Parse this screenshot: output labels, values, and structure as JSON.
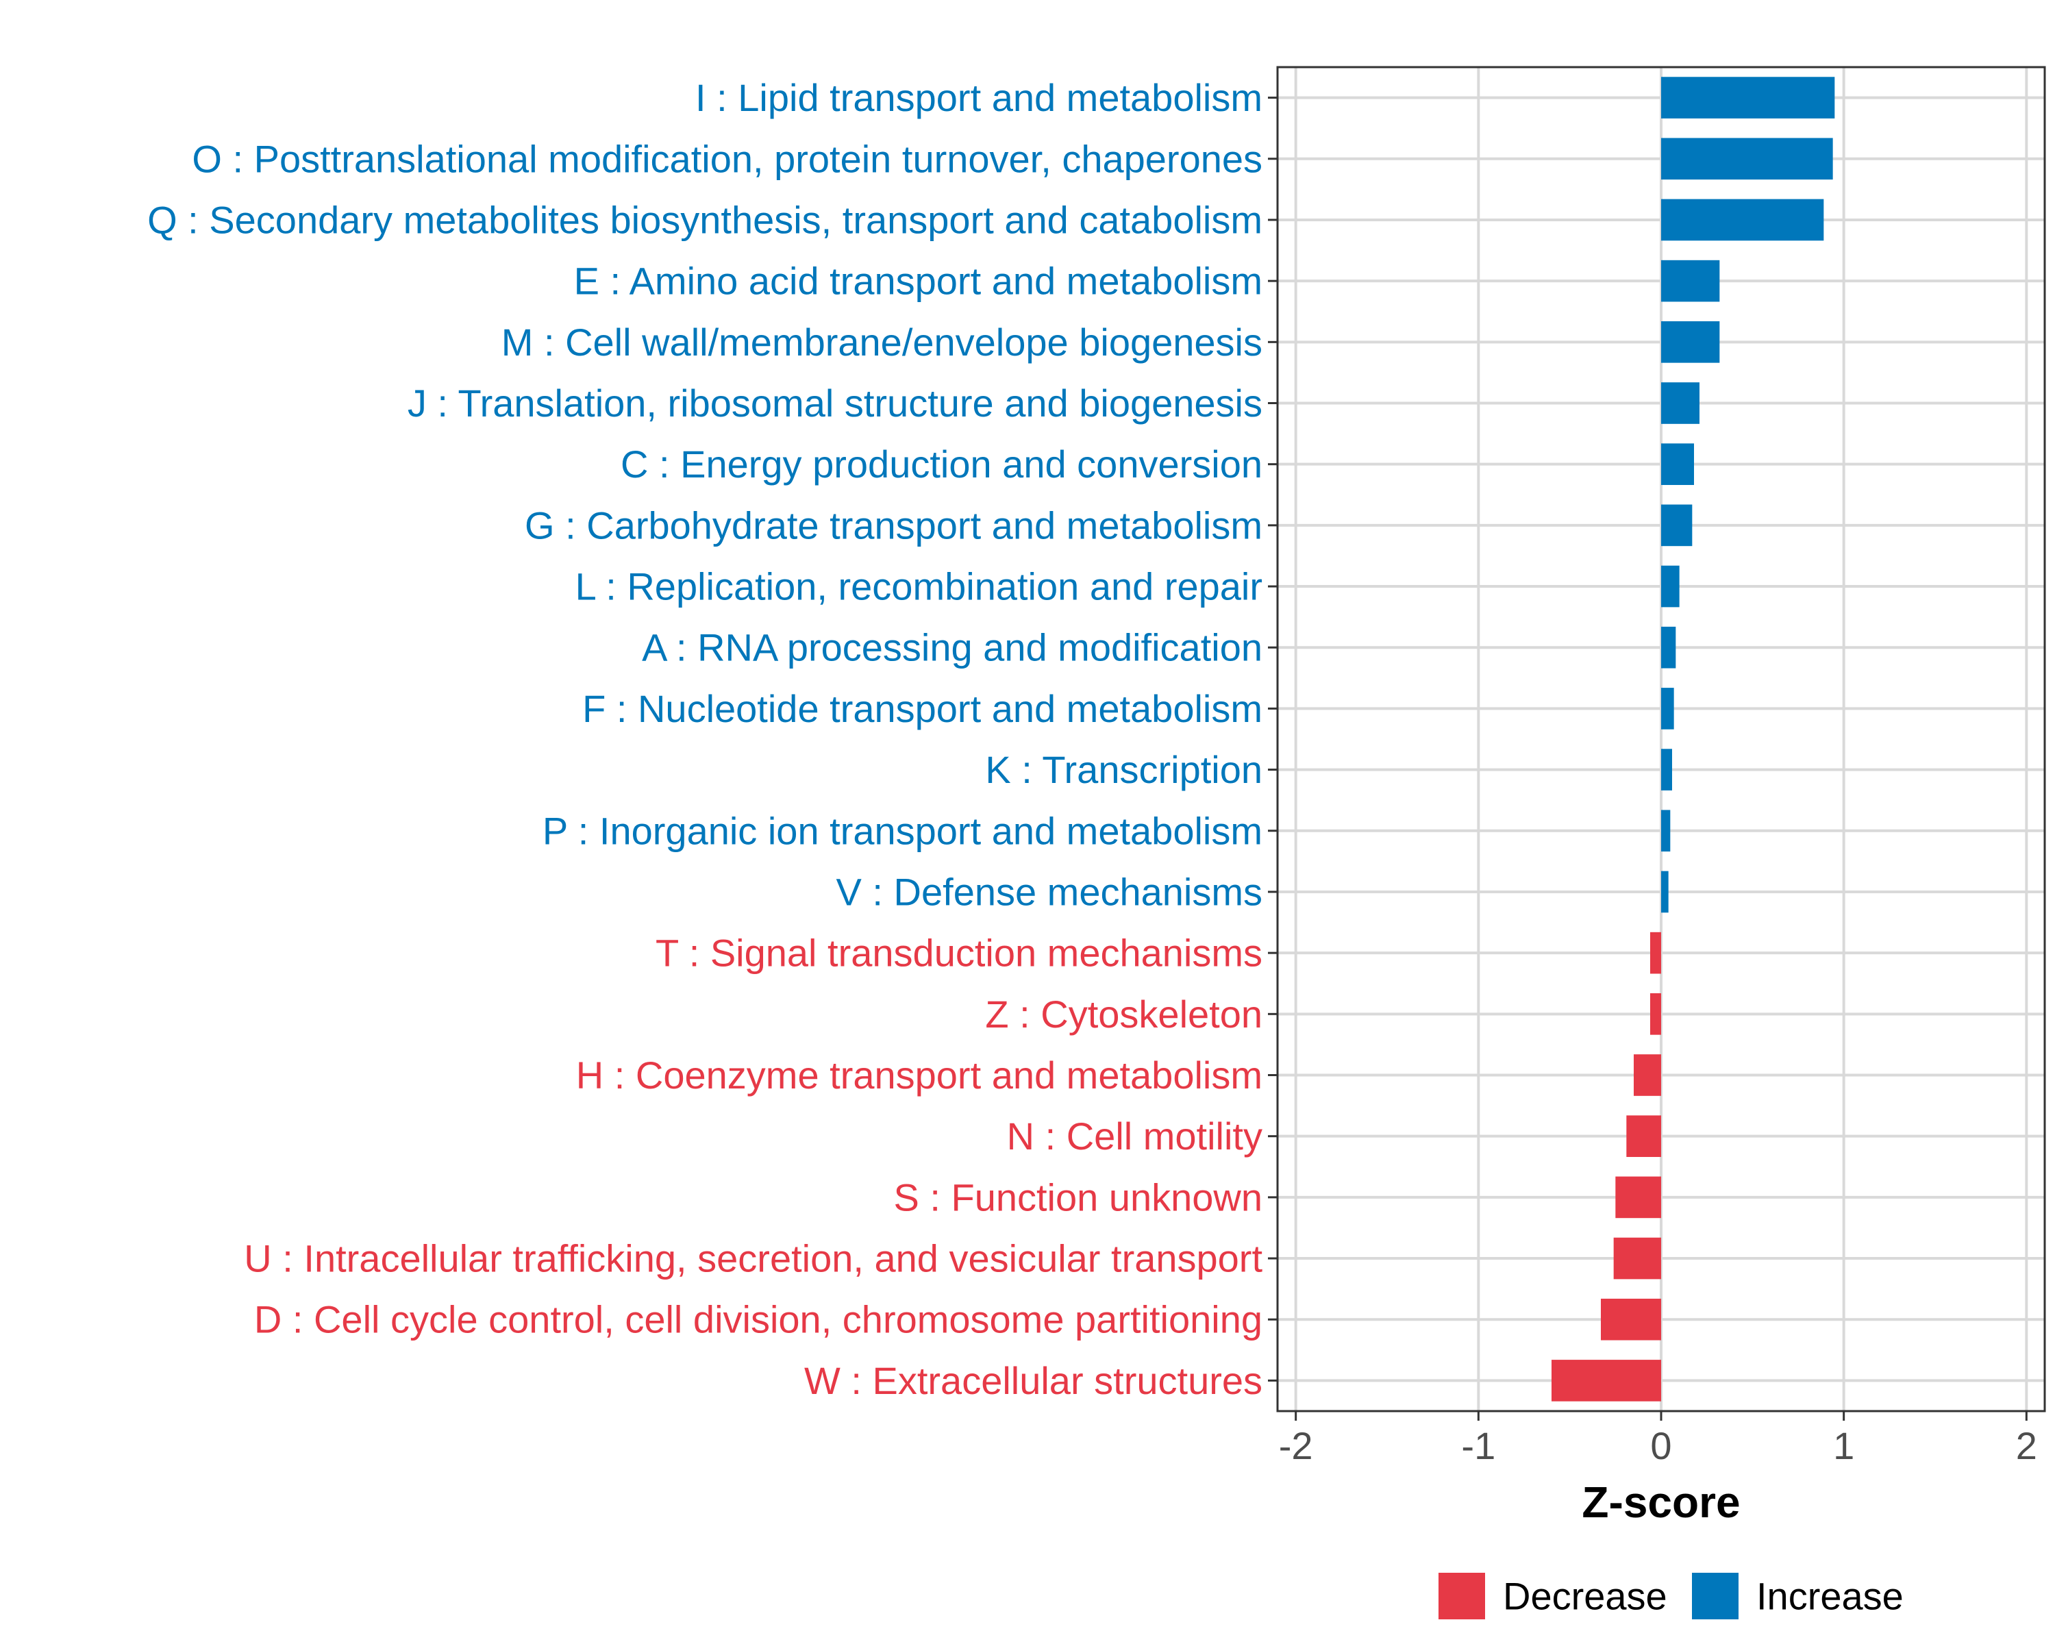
{
  "colors": {
    "increase": "#0077BB",
    "decrease": "#E63946",
    "grid": "#D9D9D9",
    "axis_text": "#4D4D4D",
    "frame": "#333333"
  },
  "legend": {
    "items": [
      {
        "label": "Decrease",
        "color": "#E63946"
      },
      {
        "label": "Increase",
        "color": "#0077BB"
      }
    ],
    "position": "bottom"
  },
  "chart_data": {
    "type": "bar",
    "orientation": "horizontal",
    "title": "",
    "xlabel": "Z-score",
    "ylabel": "",
    "xlim": [
      -2.1,
      2.1
    ],
    "xticks": [
      -2,
      -1,
      0,
      1,
      2
    ],
    "xtick_labels": [
      "-2",
      "-1",
      "0",
      "1",
      "2"
    ],
    "grid": true,
    "categories": [
      "I : Lipid transport and metabolism",
      "O : Posttranslational modification, protein turnover, chaperones",
      "Q : Secondary metabolites biosynthesis, transport and catabolism",
      "E : Amino acid transport and metabolism",
      "M : Cell wall/membrane/envelope biogenesis",
      "J : Translation, ribosomal structure and biogenesis",
      "C : Energy production and conversion",
      "G : Carbohydrate transport and metabolism",
      "L : Replication, recombination and repair",
      "A : RNA processing and modification",
      "F : Nucleotide transport and metabolism",
      "K : Transcription",
      "P : Inorganic ion transport and metabolism",
      "V : Defense mechanisms",
      "T : Signal transduction mechanisms",
      "Z : Cytoskeleton",
      "H : Coenzyme transport and metabolism",
      "N : Cell motility",
      "S : Function unknown",
      "U : Intracellular trafficking, secretion, and vesicular transport",
      "D : Cell cycle control, cell division, chromosome partitioning",
      "W : Extracellular structures"
    ],
    "values": [
      0.95,
      0.94,
      0.89,
      0.32,
      0.32,
      0.21,
      0.18,
      0.17,
      0.1,
      0.08,
      0.07,
      0.06,
      0.05,
      0.04,
      -0.06,
      -0.06,
      -0.15,
      -0.19,
      -0.25,
      -0.26,
      -0.33,
      -0.6
    ],
    "direction": [
      "Increase",
      "Increase",
      "Increase",
      "Increase",
      "Increase",
      "Increase",
      "Increase",
      "Increase",
      "Increase",
      "Increase",
      "Increase",
      "Increase",
      "Increase",
      "Increase",
      "Decrease",
      "Decrease",
      "Decrease",
      "Decrease",
      "Decrease",
      "Decrease",
      "Decrease",
      "Decrease"
    ]
  }
}
